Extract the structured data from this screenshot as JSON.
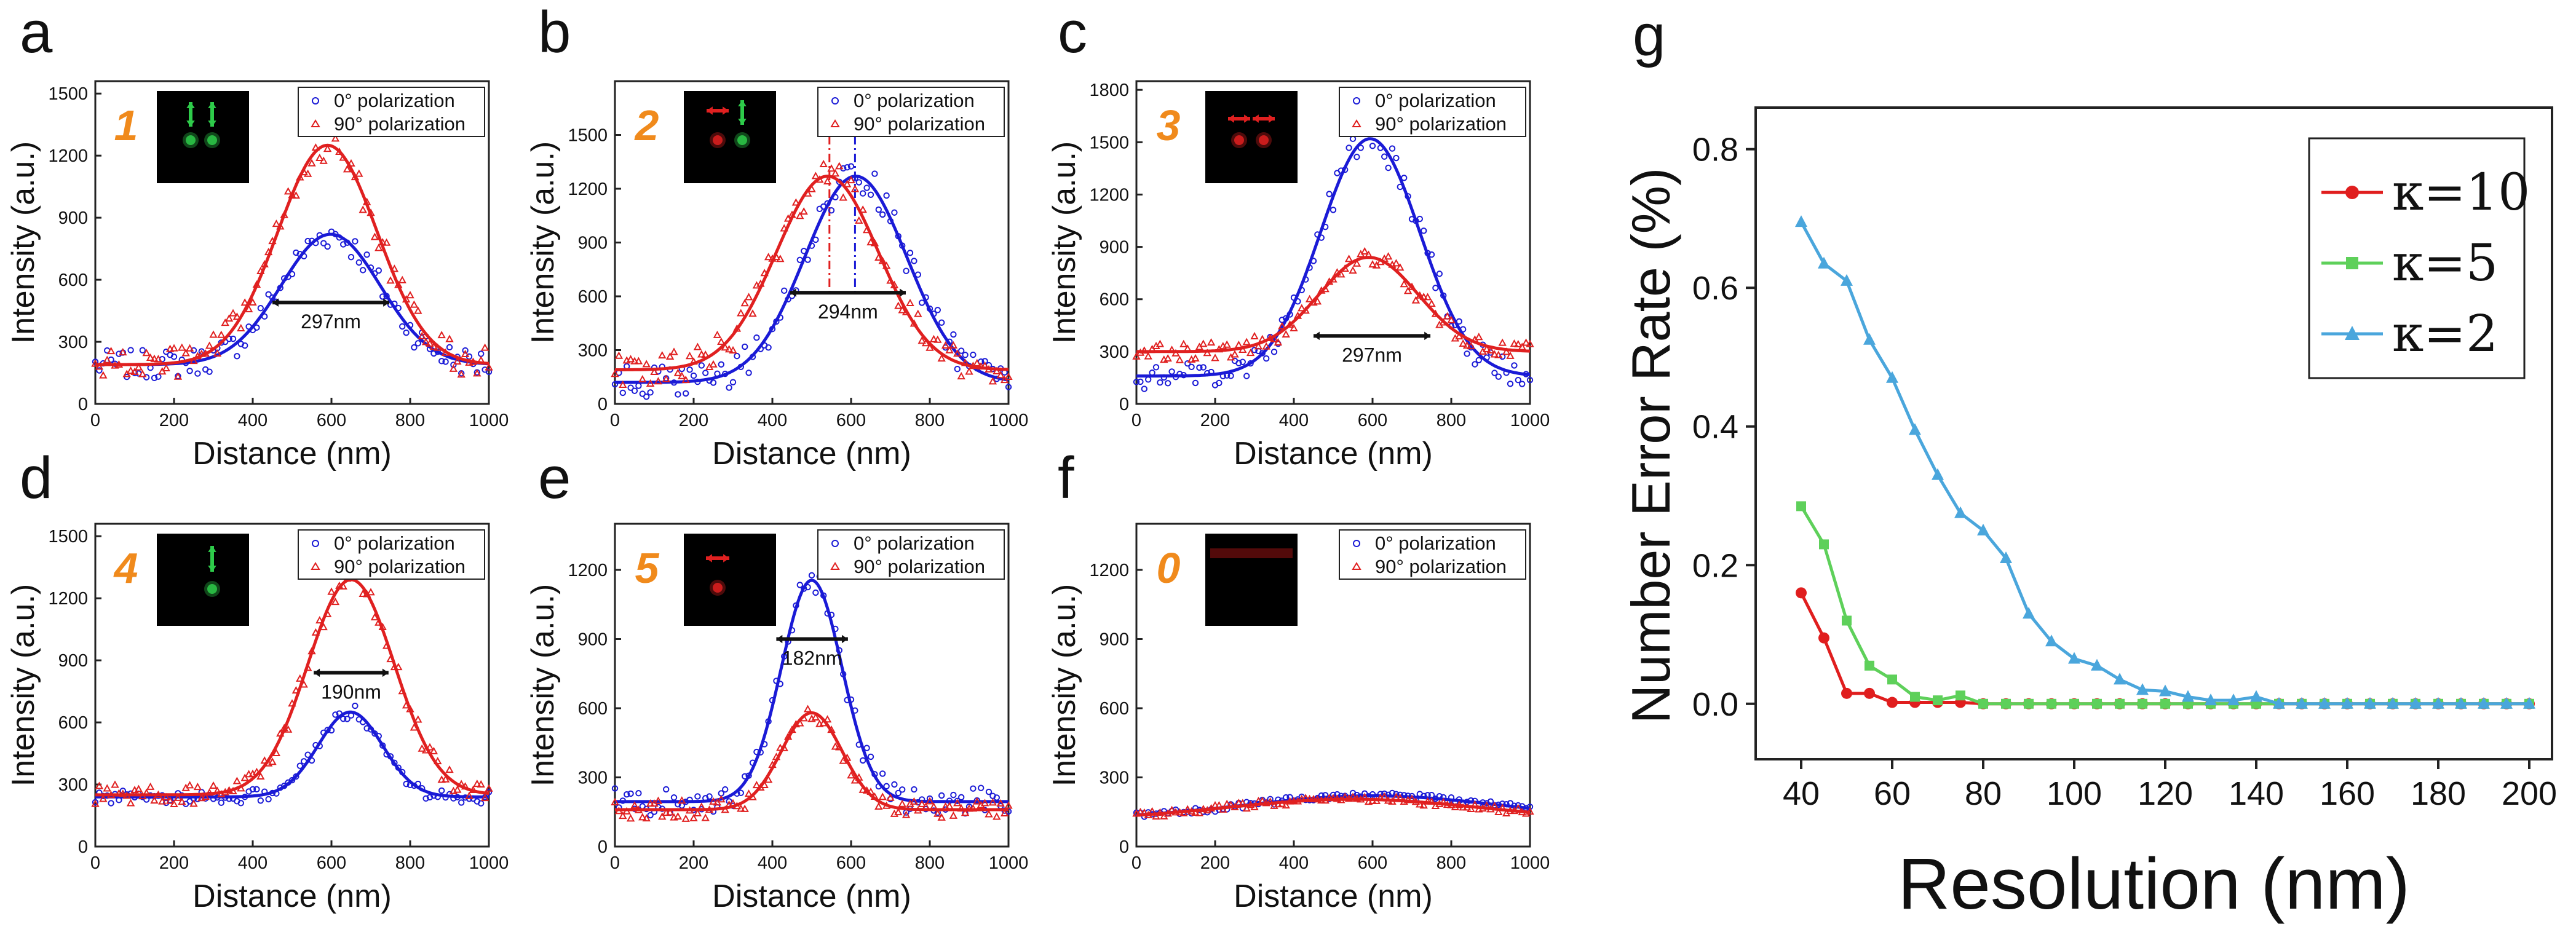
{
  "colors": {
    "blue": "#1a1ad6",
    "red": "#e02020",
    "inset_orange": "#f08a1c",
    "green": "#2ecb4a",
    "g_red": "#e01e1e",
    "g_green": "#5ed05a",
    "g_blue": "#4aa6dc"
  },
  "legend": {
    "blue": "0°   polarization",
    "red": "90° polarization"
  },
  "chart_data": [
    {
      "id": "a",
      "type": "scatter",
      "inset_label": "1",
      "inset_icon": "two-green-vertical-arrows-icon",
      "xlabel": "Distance (nm)",
      "ylabel": "Intensity (a.u.)",
      "xlim": [
        0,
        1000
      ],
      "ylim": [
        0,
        1560
      ],
      "xticks": [
        0,
        200,
        400,
        600,
        800,
        1000
      ],
      "yticks": [
        0,
        300,
        600,
        900,
        1200,
        1500
      ],
      "fwhm_label": "297nm",
      "fwhm_range": [
        450,
        747
      ],
      "fwhm_y": 490,
      "series": [
        {
          "name": "0° polarization",
          "color": "blue",
          "marker": "circle",
          "amp": 630,
          "center": 598,
          "sigma": 126,
          "base": 190,
          "noise": 70
        },
        {
          "name": "90° polarization",
          "color": "red",
          "marker": "triangle",
          "amp": 1060,
          "center": 590,
          "sigma": 126,
          "base": 190,
          "noise": 80
        }
      ]
    },
    {
      "id": "b",
      "type": "scatter",
      "inset_label": "2",
      "inset_icon": "red-horizontal-green-vertical-arrows-icon",
      "xlabel": "Distance (nm)",
      "ylabel": "Intensity (a.u.)",
      "xlim": [
        0,
        1000
      ],
      "ylim": [
        0,
        1800
      ],
      "xticks": [
        0,
        200,
        400,
        600,
        800,
        1000
      ],
      "yticks": [
        0,
        300,
        600,
        900,
        1200,
        1500
      ],
      "fwhm_label": "294nm",
      "fwhm_range": [
        445,
        739
      ],
      "fwhm_y": 620,
      "vlines": [
        {
          "x": 545,
          "color": "red"
        },
        {
          "x": 610,
          "color": "blue"
        }
      ],
      "series": [
        {
          "name": "0° polarization",
          "color": "blue",
          "marker": "circle",
          "amp": 1150,
          "center": 612,
          "sigma": 130,
          "base": 120,
          "noise": 90
        },
        {
          "name": "90° polarization",
          "color": "red",
          "marker": "triangle",
          "amp": 1080,
          "center": 540,
          "sigma": 130,
          "base": 190,
          "noise": 90
        }
      ]
    },
    {
      "id": "c",
      "type": "scatter",
      "inset_label": "3",
      "inset_icon": "two-red-horizontal-arrows-icon",
      "xlabel": "Distance (nm)",
      "ylabel": "Intensity (a.u.)",
      "xlim": [
        0,
        1000
      ],
      "ylim": [
        0,
        1850
      ],
      "xticks": [
        0,
        200,
        400,
        600,
        800,
        1000
      ],
      "yticks": [
        0,
        300,
        600,
        900,
        1200,
        1500,
        1800
      ],
      "fwhm_label": "297nm",
      "fwhm_range": [
        450,
        747
      ],
      "fwhm_y": 390,
      "series": [
        {
          "name": "0° polarization",
          "color": "blue",
          "marker": "circle",
          "amp": 1360,
          "center": 594,
          "sigma": 126,
          "base": 160,
          "noise": 80
        },
        {
          "name": "90° polarization",
          "color": "red",
          "marker": "triangle",
          "amp": 540,
          "center": 590,
          "sigma": 126,
          "base": 300,
          "noise": 50
        }
      ]
    },
    {
      "id": "d",
      "type": "scatter",
      "inset_label": "4",
      "inset_icon": "one-green-vertical-arrow-icon",
      "xlabel": "Distance (nm)",
      "ylabel": "Intensity (a.u.)",
      "xlim": [
        0,
        1000
      ],
      "ylim": [
        0,
        1560
      ],
      "xticks": [
        0,
        200,
        400,
        600,
        800,
        1000
      ],
      "yticks": [
        0,
        300,
        600,
        900,
        1200,
        1500
      ],
      "fwhm_label": "190nm",
      "fwhm_range": [
        555,
        745
      ],
      "fwhm_y": 840,
      "series": [
        {
          "name": "0° polarization",
          "color": "blue",
          "marker": "circle",
          "amp": 410,
          "center": 648,
          "sigma": 82,
          "base": 240,
          "noise": 35
        },
        {
          "name": "90° polarization",
          "color": "red",
          "marker": "triangle",
          "amp": 1040,
          "center": 650,
          "sigma": 110,
          "base": 250,
          "noise": 50
        }
      ]
    },
    {
      "id": "e",
      "type": "scatter",
      "inset_label": "5",
      "inset_icon": "one-red-horizontal-arrow-icon",
      "xlabel": "Distance (nm)",
      "ylabel": "Intensity (a.u.)",
      "xlim": [
        0,
        1000
      ],
      "ylim": [
        0,
        1400
      ],
      "xticks": [
        0,
        200,
        400,
        600,
        800,
        1000
      ],
      "yticks": [
        0,
        300,
        600,
        900,
        1200
      ],
      "fwhm_label": "182nm",
      "fwhm_range": [
        410,
        592
      ],
      "fwhm_y": 900,
      "series": [
        {
          "name": "0° polarization",
          "color": "blue",
          "marker": "circle",
          "amp": 960,
          "center": 500,
          "sigma": 77,
          "base": 195,
          "noise": 60
        },
        {
          "name": "90° polarization",
          "color": "red",
          "marker": "triangle",
          "amp": 420,
          "center": 500,
          "sigma": 77,
          "base": 160,
          "noise": 40
        }
      ]
    },
    {
      "id": "f",
      "type": "scatter",
      "inset_label": "0",
      "inset_icon": "empty-dark-inset-icon",
      "xlabel": "Distance (nm)",
      "ylabel": "Intensity (a.u.)",
      "xlim": [
        0,
        1000
      ],
      "ylim": [
        0,
        1400
      ],
      "xticks": [
        0,
        200,
        400,
        600,
        800,
        1000
      ],
      "yticks": [
        0,
        300,
        600,
        900,
        1200
      ],
      "series": [
        {
          "name": "0° polarization",
          "color": "blue",
          "marker": "circle",
          "amp": 100,
          "center": 600,
          "sigma": 320,
          "base": 120,
          "noise": 15
        },
        {
          "name": "90° polarization",
          "color": "red",
          "marker": "triangle",
          "amp": 90,
          "center": 550,
          "sigma": 320,
          "base": 115,
          "noise": 15
        }
      ]
    },
    {
      "id": "g",
      "type": "line",
      "xlabel": "Resolution (nm)",
      "ylabel": "Number Error Rate (%)",
      "xlim": [
        30,
        205
      ],
      "ylim": [
        -0.08,
        0.86
      ],
      "xticks": [
        40,
        60,
        80,
        100,
        120,
        140,
        160,
        180,
        200
      ],
      "yticks": [
        0.0,
        0.2,
        0.4,
        0.6,
        0.8
      ],
      "x": [
        40,
        45,
        50,
        55,
        60,
        65,
        70,
        75,
        80,
        85,
        90,
        95,
        100,
        105,
        110,
        115,
        120,
        125,
        130,
        135,
        140,
        145,
        150,
        155,
        160,
        165,
        170,
        175,
        180,
        185,
        190,
        195,
        200
      ],
      "series": [
        {
          "name": "κ=10",
          "color": "g_red",
          "marker": "circle",
          "values": [
            0.16,
            0.095,
            0.015,
            0.015,
            0.002,
            0.002,
            0.002,
            0.002,
            0,
            0,
            0,
            0,
            0,
            0,
            0,
            0,
            0,
            0,
            0,
            0,
            0,
            0,
            0,
            0,
            0,
            0,
            0,
            0,
            0,
            0,
            0,
            0,
            0
          ]
        },
        {
          "name": "κ=5",
          "color": "g_green",
          "marker": "square",
          "values": [
            0.285,
            0.23,
            0.12,
            0.055,
            0.035,
            0.01,
            0.005,
            0.012,
            0,
            0,
            0,
            0,
            0,
            0,
            0,
            0,
            0,
            0,
            0,
            0,
            0,
            0,
            0,
            0,
            0,
            0,
            0,
            0,
            0,
            0,
            0,
            0,
            0
          ]
        },
        {
          "name": "κ=2",
          "color": "g_blue",
          "marker": "triangle",
          "values": [
            0.695,
            0.635,
            0.61,
            0.525,
            0.47,
            0.395,
            0.33,
            0.275,
            0.25,
            0.21,
            0.13,
            0.09,
            0.065,
            0.055,
            0.035,
            0.02,
            0.018,
            0.01,
            0.005,
            0.005,
            0.01,
            0,
            0,
            0,
            0,
            0,
            0,
            0,
            0,
            0,
            0,
            0,
            0
          ]
        }
      ]
    }
  ]
}
